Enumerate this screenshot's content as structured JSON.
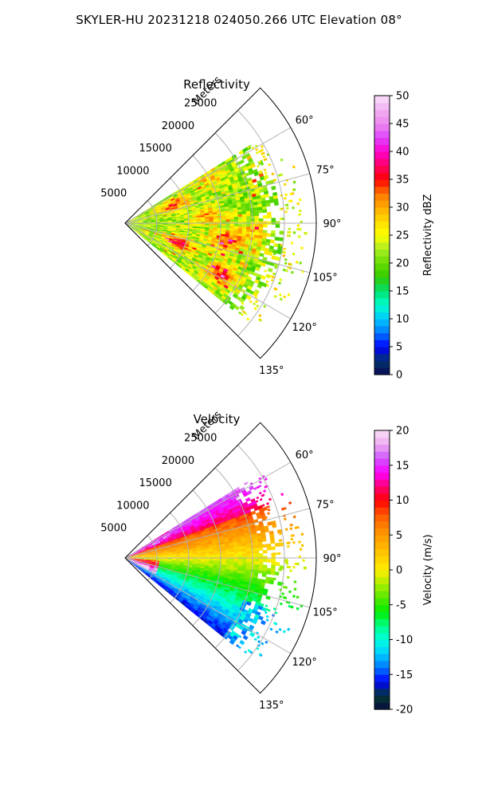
{
  "suptitle": "SKYLER-HU  20231218  024050.266 UTC Elevation 08°",
  "colors": {
    "axis": "#000000",
    "grid": "#b0b0b0"
  },
  "chart_data": [
    {
      "type": "heatmap",
      "projection": "polar-sector",
      "title": "Reflectivity",
      "radius_label": "Meters",
      "azimuth_range_deg": [
        45,
        135
      ],
      "range_lim_m": [
        0,
        30000
      ],
      "range_ticks": [
        "5000",
        "10000",
        "15000",
        "20000",
        "25000"
      ],
      "range_tick_values": [
        5000,
        10000,
        15000,
        20000,
        25000
      ],
      "azimuth_ticks": [
        "60°",
        "75°",
        "90°",
        "105°",
        "120°",
        "135°"
      ],
      "azimuth_tick_values": [
        60,
        75,
        90,
        105,
        120,
        135
      ],
      "grid": true,
      "data_extent": {
        "azimuth_deg": [
          58,
          128
        ],
        "max_range_m": [
          21000,
          24500
        ]
      },
      "colorbar": {
        "label": "Reflectivity dBZ",
        "vmin": 0,
        "vmax": 50,
        "ticks": [
          "0",
          "5",
          "10",
          "15",
          "20",
          "25",
          "30",
          "35",
          "40",
          "45",
          "50"
        ],
        "tick_values": [
          0,
          5,
          10,
          15,
          20,
          25,
          30,
          35,
          40,
          45,
          50
        ]
      },
      "typical_values": {
        "background": 22,
        "cells": 32,
        "cores": 38
      }
    },
    {
      "type": "heatmap",
      "projection": "polar-sector",
      "title": "Velocity",
      "radius_label": "Meters",
      "azimuth_range_deg": [
        45,
        135
      ],
      "range_lim_m": [
        0,
        30000
      ],
      "range_ticks": [
        "5000",
        "10000",
        "15000",
        "20000",
        "25000"
      ],
      "range_tick_values": [
        5000,
        10000,
        15000,
        20000,
        25000
      ],
      "azimuth_ticks": [
        "60°",
        "75°",
        "90°",
        "105°",
        "120°",
        "135°"
      ],
      "azimuth_tick_values": [
        60,
        75,
        90,
        105,
        120,
        135
      ],
      "grid": true,
      "data_extent": {
        "azimuth_deg": [
          58,
          128
        ],
        "max_range_m": [
          21000,
          24500
        ]
      },
      "colorbar": {
        "label": "Velocity (m/s)",
        "vmin": -20,
        "vmax": 20,
        "ticks": [
          "-20",
          "-15",
          "-10",
          "-5",
          "0",
          "5",
          "10",
          "15",
          "20"
        ],
        "tick_values": [
          -20,
          -15,
          -10,
          -5,
          0,
          5,
          10,
          15,
          20
        ]
      },
      "typical_values": {
        "north_sector": 10,
        "center": 0,
        "south_sector": -8,
        "far_south": -13
      }
    }
  ]
}
